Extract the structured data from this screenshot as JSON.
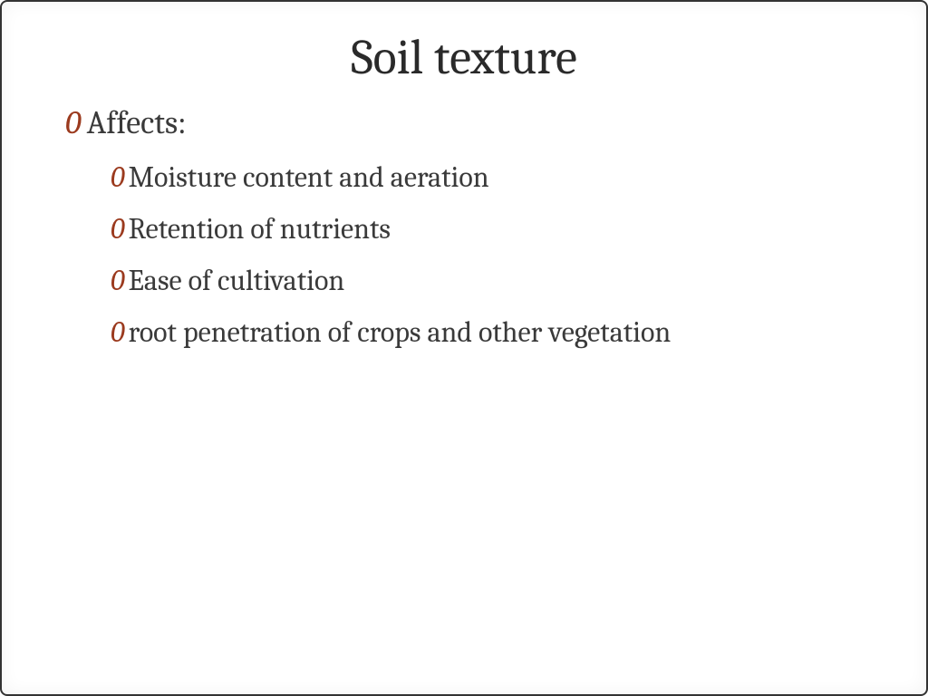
{
  "slide": {
    "title": "Soil texture",
    "bullet_marker": "0",
    "level1": {
      "text": "Affects:"
    },
    "level2": [
      {
        "text": " Moisture content and aeration"
      },
      {
        "text": "Retention of nutrients"
      },
      {
        "text": "Ease of cultivation"
      },
      {
        "text": " root penetration of crops and other vegetation"
      }
    ],
    "colors": {
      "title_color": "#2a2a2a",
      "text_color": "#3a3a3a",
      "bullet_color": "#9b3a1e",
      "background": "#ffffff",
      "border": "#333333"
    },
    "typography": {
      "title_fontsize": 54,
      "l1_fontsize": 36,
      "l2_fontsize": 32,
      "font_family": "Cambria, Georgia, serif"
    }
  }
}
